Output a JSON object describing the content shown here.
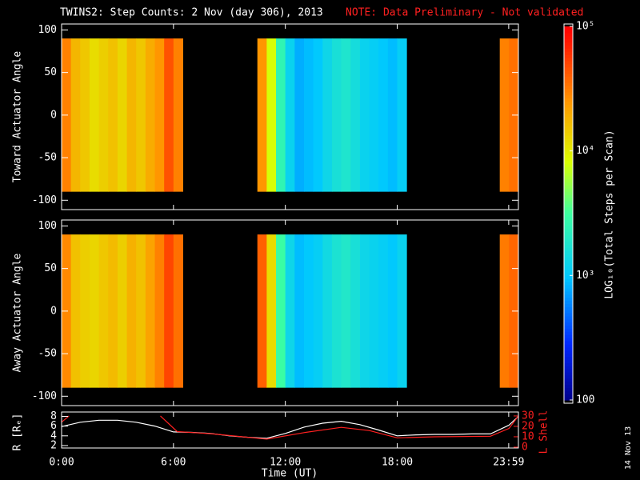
{
  "chart_data": [
    {
      "type": "heatmap",
      "title": "TWINS2: Step Counts:  2 Nov (day 306), 2013",
      "note": "NOTE: Data Preliminary - Not validated",
      "ylabel": "Toward Actuator Angle",
      "x_edges": [
        0,
        0.5,
        1,
        1.5,
        2,
        2.5,
        3,
        3.5,
        4,
        4.5,
        5,
        5.5,
        6,
        6.5,
        7,
        7.5,
        8,
        8.5,
        9,
        9.5,
        10,
        10.5,
        11,
        11.5,
        12,
        12.5,
        13,
        13.5,
        14,
        14.5,
        15,
        15.5,
        16,
        16.5,
        17,
        17.5,
        18,
        18.5,
        19,
        19.5,
        20,
        20.5,
        21,
        21.5,
        22,
        22.5,
        23,
        23.5,
        24,
        24.5
      ],
      "y_range": [
        -90,
        90
      ],
      "values": [
        30000,
        18000,
        15000,
        12000,
        14000,
        16000,
        13000,
        18000,
        15000,
        20000,
        25000,
        45000,
        30000,
        null,
        null,
        null,
        null,
        null,
        null,
        null,
        null,
        25000,
        8000,
        2500,
        1200,
        800,
        900,
        1000,
        1300,
        1600,
        1800,
        1500,
        1200,
        1100,
        1000,
        900,
        1100,
        null,
        null,
        null,
        null,
        null,
        null,
        null,
        null,
        null,
        null,
        30000,
        35000
      ],
      "xlim": [
        0,
        24.5
      ],
      "xticks": [
        {
          "value": 0,
          "label": "0:00"
        },
        {
          "value": 6,
          "label": "6:00"
        },
        {
          "value": 12,
          "label": "12:00"
        },
        {
          "value": 18,
          "label": "18:00"
        },
        {
          "value": 23.98,
          "label": "23:59"
        }
      ],
      "ylim": [
        -111,
        107
      ],
      "yticks": [
        -100,
        -50,
        0,
        50,
        100
      ],
      "colorbar": {
        "label": "LOG₁₀(Total Steps per Scan)",
        "lim": [
          100,
          100000
        ],
        "log": true,
        "ticks": [
          {
            "value": 100000,
            "label": "10⁵"
          },
          {
            "value": 10000,
            "label": "10⁴"
          },
          {
            "value": 1000,
            "label": "10³"
          },
          100
        ]
      }
    },
    {
      "type": "heatmap",
      "ylabel": "Away Actuator Angle",
      "x_edges": [
        0,
        0.5,
        1,
        1.5,
        2,
        2.5,
        3,
        3.5,
        4,
        4.5,
        5,
        5.5,
        6,
        6.5,
        7,
        7.5,
        8,
        8.5,
        9,
        9.5,
        10,
        10.5,
        11,
        11.5,
        12,
        12.5,
        13,
        13.5,
        14,
        14.5,
        15,
        15.5,
        16,
        16.5,
        17,
        17.5,
        18,
        18.5,
        19,
        19.5,
        20,
        20.5,
        21,
        21.5,
        22,
        22.5,
        23,
        23.5,
        24,
        24.5
      ],
      "y_range": [
        -90,
        90
      ],
      "values": [
        28000,
        16000,
        14000,
        13000,
        15000,
        17000,
        14000,
        19000,
        16000,
        22000,
        30000,
        50000,
        35000,
        null,
        null,
        null,
        null,
        null,
        null,
        null,
        null,
        40000,
        12000,
        3000,
        1300,
        900,
        1000,
        1100,
        1400,
        1700,
        1900,
        1600,
        1300,
        1200,
        1100,
        1000,
        1200,
        null,
        null,
        null,
        null,
        null,
        null,
        null,
        null,
        null,
        null,
        32000,
        38000
      ],
      "xlim": [
        0,
        24.5
      ],
      "xticks": [
        {
          "value": 0,
          "label": "0:00"
        },
        {
          "value": 6,
          "label": "6:00"
        },
        {
          "value": 12,
          "label": "12:00"
        },
        {
          "value": 18,
          "label": "18:00"
        },
        {
          "value": 23.98,
          "label": "23:59"
        }
      ],
      "ylim": [
        -111,
        107
      ],
      "yticks": [
        -100,
        -50,
        0,
        50,
        100
      ]
    },
    {
      "type": "line",
      "xlabel": "Time (UT)",
      "ylabel": "R [Rₑ]",
      "y2label": "L Shell",
      "xlim": [
        0,
        24.5
      ],
      "xticks": [
        {
          "value": 0,
          "label": "0:00"
        },
        {
          "value": 6,
          "label": "6:00"
        },
        {
          "value": 12,
          "label": "12:00"
        },
        {
          "value": 18,
          "label": "18:00"
        },
        {
          "value": 23.98,
          "label": "23:59"
        }
      ],
      "ylim": [
        1.5,
        8.9
      ],
      "yticks": [
        2,
        4,
        6,
        8
      ],
      "y2lim": [
        -0.8,
        33.8
      ],
      "y2ticks": [
        0,
        10,
        20,
        30
      ],
      "series": [
        {
          "color": "#ffffff",
          "x": [
            0,
            1,
            2,
            3,
            4,
            5,
            6,
            7,
            8,
            9,
            10,
            11,
            12,
            13,
            14,
            15,
            16,
            17,
            18,
            19,
            20,
            21,
            22,
            23,
            24,
            24.5
          ],
          "values": [
            5.9,
            6.8,
            7.2,
            7.2,
            6.8,
            6,
            4.8,
            4.7,
            4.5,
            4,
            3.7,
            3.5,
            4.5,
            5.8,
            6.6,
            7,
            6.3,
            5.2,
            4,
            4.2,
            4.3,
            4.3,
            4.4,
            4.4,
            6.2,
            8
          ]
        },
        {
          "color": "#ff2020",
          "axis": "y2",
          "x": [
            0,
            0.4,
            3,
            5.3,
            6.2,
            8,
            11,
            13,
            15,
            16.5,
            18,
            20,
            23,
            24,
            24.5
          ],
          "values": [
            24,
            30,
            null,
            30,
            15,
            13,
            7.7,
            14,
            19,
            16,
            9,
            10,
            10.5,
            18,
            30
          ]
        }
      ]
    }
  ],
  "stamp": "14 Nov 13"
}
